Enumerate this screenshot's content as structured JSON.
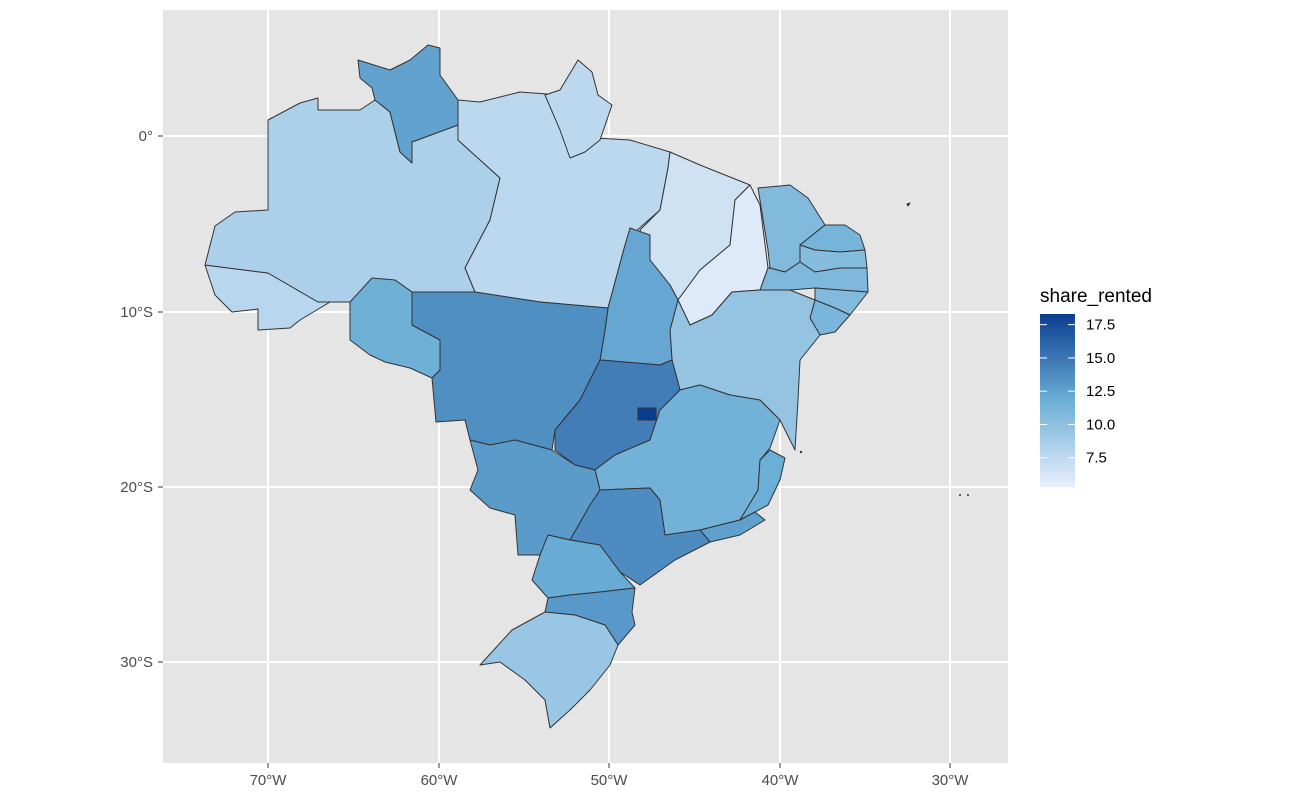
{
  "colors": {
    "panel_background": "#e5e5e5",
    "grid": "#ffffff",
    "state_border": "#333333",
    "scale_low": "#e8effc",
    "scale_high": "#0b3d8f"
  },
  "axes": {
    "x_ticks": [
      "70°W",
      "60°W",
      "50°W",
      "40°W",
      "30°W"
    ],
    "y_ticks": [
      "0°",
      "10°S",
      "20°S",
      "30°S"
    ]
  },
  "legend": {
    "title": "share_rented",
    "labels": [
      "17.5",
      "15.0",
      "12.5",
      "10.0",
      "7.5"
    ],
    "values": [
      17.5,
      15.0,
      12.5,
      10.0,
      7.5
    ],
    "range": [
      5.3,
      18.3
    ]
  },
  "chart_data": {
    "type": "choropleth",
    "title": "",
    "xlabel": "",
    "ylabel": "",
    "fill_variable": "share_rented",
    "xlim": [
      -76,
      -26.5
    ],
    "ylim": [
      -35,
      7.5
    ],
    "regions": [
      {
        "id": "AC",
        "value": 7.8
      },
      {
        "id": "AM",
        "value": 8.4
      },
      {
        "id": "RR",
        "value": 12.5
      },
      {
        "id": "PA",
        "value": 7.6
      },
      {
        "id": "AP",
        "value": 7.6
      },
      {
        "id": "MA",
        "value": 6.6
      },
      {
        "id": "PI",
        "value": 5.8
      },
      {
        "id": "CE",
        "value": 10.6
      },
      {
        "id": "RN",
        "value": 11.2
      },
      {
        "id": "PB",
        "value": 10.4
      },
      {
        "id": "PE",
        "value": 10.8
      },
      {
        "id": "AL",
        "value": 10.6
      },
      {
        "id": "SE",
        "value": 11.0
      },
      {
        "id": "BA",
        "value": 9.6
      },
      {
        "id": "TO",
        "value": 12.2
      },
      {
        "id": "RO",
        "value": 11.6
      },
      {
        "id": "MT",
        "value": 13.6
      },
      {
        "id": "GO",
        "value": 14.6
      },
      {
        "id": "DF",
        "value": 18.3
      },
      {
        "id": "MG",
        "value": 11.4
      },
      {
        "id": "ES",
        "value": 11.8
      },
      {
        "id": "RJ",
        "value": 12.6
      },
      {
        "id": "SP",
        "value": 13.8
      },
      {
        "id": "MS",
        "value": 12.9
      },
      {
        "id": "PR",
        "value": 12.0
      },
      {
        "id": "SC",
        "value": 13.0
      },
      {
        "id": "RS",
        "value": 9.4
      }
    ]
  }
}
